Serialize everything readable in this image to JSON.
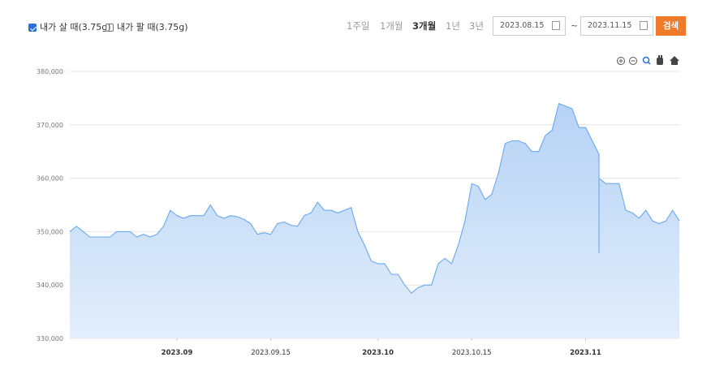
{
  "controls": {
    "buy_label": "내가 살 때(3.75g)",
    "sell_label": "내가 팔 때(3.75g)",
    "periods": [
      "1주일",
      "1개월",
      "3개월",
      "1년",
      "3년"
    ],
    "start_date": "2023.08.15",
    "separator": "~",
    "end_date": "2023.11.15",
    "search": "검색"
  },
  "chart_data": {
    "type": "area",
    "color": "#6aa9ef",
    "grid": true,
    "ylim": [
      330000,
      380000
    ],
    "yticks": [
      {
        "value": 330000,
        "label": "330,000"
      },
      {
        "value": 340000,
        "label": "340,000"
      },
      {
        "value": 350000,
        "label": "350,000"
      },
      {
        "value": 360000,
        "label": "360,000"
      },
      {
        "value": 370000,
        "label": "370,000"
      },
      {
        "value": 380000,
        "label": "380,000"
      }
    ],
    "xlim": [
      "2023.08.16",
      "2023.11.15"
    ],
    "xticks": [
      {
        "value": "2023.09.01",
        "label": "2023.09"
      },
      "2023.09.15",
      {
        "value": "2023.10.01",
        "label": "2023.10"
      },
      "2023.10.15",
      {
        "value": "2023.11.01",
        "label": "2023.11"
      }
    ],
    "x": [
      "2023.08.16",
      "2023.08.17",
      "2023.08.18",
      "2023.08.19",
      "2023.08.20",
      "2023.08.21",
      "2023.08.22",
      "2023.08.23",
      "2023.08.24",
      "2023.08.25",
      "2023.08.26",
      "2023.08.27",
      "2023.08.28",
      "2023.08.29",
      "2023.08.30",
      "2023.08.31",
      "2023.09.01",
      "2023.09.02",
      "2023.09.03",
      "2023.09.04",
      "2023.09.05",
      "2023.09.06",
      "2023.09.07",
      "2023.09.08",
      "2023.09.09",
      "2023.09.10",
      "2023.09.11",
      "2023.09.12",
      "2023.09.13",
      "2023.09.14",
      "2023.09.15",
      "2023.09.16",
      "2023.09.17",
      "2023.09.18",
      "2023.09.19",
      "2023.09.20",
      "2023.09.21",
      "2023.09.22",
      "2023.09.23",
      "2023.09.24",
      "2023.09.25",
      "2023.09.26",
      "2023.09.27",
      "2023.09.28",
      "2023.09.29",
      "2023.09.30",
      "2023.10.01",
      "2023.10.02",
      "2023.10.03",
      "2023.10.04",
      "2023.10.05",
      "2023.10.06",
      "2023.10.07",
      "2023.10.08",
      "2023.10.09",
      "2023.10.10",
      "2023.10.11",
      "2023.10.12",
      "2023.10.13",
      "2023.10.14",
      "2023.10.15",
      "2023.10.16",
      "2023.10.17",
      "2023.10.18",
      "2023.10.19",
      "2023.10.20",
      "2023.10.21",
      "2023.10.22",
      "2023.10.23",
      "2023.10.24",
      "2023.10.25",
      "2023.10.26",
      "2023.10.27",
      "2023.10.28",
      "2023.10.29",
      "2023.10.30",
      "2023.10.31",
      "2023.11.01",
      "2023.11.02",
      "2023.11.03",
      "2023.11.03",
      "2023.11.03",
      "2023.11.04",
      "2023.11.05",
      "2023.11.06",
      "2023.11.07",
      "2023.11.08",
      "2023.11.09",
      "2023.11.10",
      "2023.11.11",
      "2023.11.12",
      "2023.11.13",
      "2023.11.14",
      "2023.11.15"
    ],
    "series": [
      {
        "color": "#6aa9ef",
        "values": [
          350000,
          351000,
          350000,
          349000,
          349000,
          349000,
          349000,
          350000,
          350000,
          350000,
          349000,
          349500,
          349000,
          349500,
          351000,
          354000,
          353000,
          352500,
          353000,
          353000,
          353000,
          355000,
          353000,
          352500,
          353000,
          352800,
          352300,
          351500,
          349500,
          349800,
          349500,
          351500,
          351800,
          351200,
          351000,
          353000,
          353500,
          355500,
          354000,
          354000,
          353500,
          354000,
          354500,
          350000,
          347500,
          344500,
          344000,
          344000,
          342000,
          342000,
          340000,
          338500,
          339500,
          340000,
          340000,
          344000,
          345000,
          344000,
          347500,
          352000,
          359000,
          358500,
          356000,
          357000,
          361000,
          366500,
          367000,
          367000,
          366500,
          365000,
          365000,
          368000,
          369000,
          374000,
          373500,
          373000,
          369500,
          369500,
          367000,
          364500,
          346000,
          360000,
          359000,
          359000,
          359000,
          354000,
          353500,
          352500,
          354000,
          352000,
          351500,
          352000,
          354000,
          352000
        ]
      }
    ]
  }
}
